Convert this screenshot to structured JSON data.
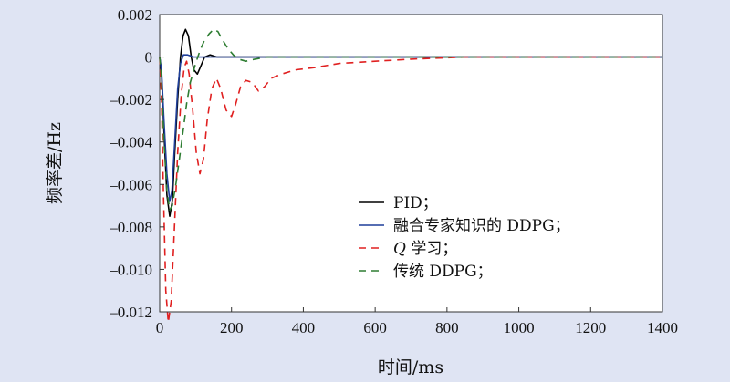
{
  "chart_data": {
    "type": "line",
    "xlabel": "时间/ms",
    "ylabel": "频率差/Hz",
    "xlim": [
      0,
      1400
    ],
    "ylim": [
      -0.012,
      0.002
    ],
    "x_ticks": [
      0,
      200,
      400,
      600,
      800,
      1000,
      1200,
      1400
    ],
    "y_ticks": [
      0.002,
      0,
      -0.002,
      -0.004,
      -0.006,
      -0.008,
      -0.01,
      -0.012
    ],
    "x_tick_labels": [
      "0",
      "200",
      "400",
      "600",
      "800",
      "1000",
      "1200",
      "1400"
    ],
    "y_tick_labels": [
      "0.002",
      "0",
      "–0.002",
      "–0.004",
      "–0.006",
      "–0.008",
      "–0.010",
      "–0.012"
    ],
    "grid": false,
    "legend_position": "bottom-center",
    "series": [
      {
        "name": "PID；",
        "color": "#000000",
        "dash": "solid",
        "points": [
          [
            0,
            0
          ],
          [
            5,
            -0.0008
          ],
          [
            12,
            -0.0035
          ],
          [
            20,
            -0.0065
          ],
          [
            28,
            -0.0075
          ],
          [
            35,
            -0.0068
          ],
          [
            42,
            -0.0045
          ],
          [
            50,
            -0.002
          ],
          [
            58,
            0.0
          ],
          [
            65,
            0.001
          ],
          [
            72,
            0.0013
          ],
          [
            80,
            0.001
          ],
          [
            88,
            0.0
          ],
          [
            95,
            -0.0006
          ],
          [
            105,
            -0.0008
          ],
          [
            115,
            -0.0004
          ],
          [
            125,
            0.0
          ],
          [
            140,
            0.0001
          ],
          [
            160,
            0.0
          ],
          [
            200,
            0.0
          ],
          [
            400,
            0.0
          ],
          [
            800,
            0.0
          ],
          [
            1400,
            0.0
          ]
        ]
      },
      {
        "name": "融合专家知识的 DDPG；",
        "color": "#1f3f9a",
        "dash": "solid",
        "points": [
          [
            0,
            0
          ],
          [
            5,
            -0.0006
          ],
          [
            12,
            -0.003
          ],
          [
            20,
            -0.0055
          ],
          [
            28,
            -0.0068
          ],
          [
            34,
            -0.0063
          ],
          [
            42,
            -0.004
          ],
          [
            50,
            -0.0015
          ],
          [
            58,
            -0.0003
          ],
          [
            66,
            0.0001
          ],
          [
            78,
            0.0001
          ],
          [
            95,
            0.0
          ],
          [
            150,
            0.0
          ],
          [
            400,
            0.0
          ],
          [
            800,
            0.0
          ],
          [
            1400,
            0.0
          ]
        ]
      },
      {
        "name": "Q 学习；",
        "color": "#e02020",
        "dash": "8,6",
        "points": [
          [
            0,
            0
          ],
          [
            5,
            -0.002
          ],
          [
            10,
            -0.006
          ],
          [
            17,
            -0.011
          ],
          [
            24,
            -0.0125
          ],
          [
            32,
            -0.0115
          ],
          [
            40,
            -0.0085
          ],
          [
            50,
            -0.0045
          ],
          [
            60,
            -0.0018
          ],
          [
            68,
            -0.0005
          ],
          [
            75,
            -0.0002
          ],
          [
            82,
            -0.0008
          ],
          [
            92,
            -0.0025
          ],
          [
            102,
            -0.0045
          ],
          [
            112,
            -0.0055
          ],
          [
            122,
            -0.0048
          ],
          [
            132,
            -0.003
          ],
          [
            145,
            -0.0015
          ],
          [
            158,
            -0.001
          ],
          [
            170,
            -0.0015
          ],
          [
            185,
            -0.0025
          ],
          [
            200,
            -0.0028
          ],
          [
            212,
            -0.0022
          ],
          [
            225,
            -0.0014
          ],
          [
            240,
            -0.0011
          ],
          [
            258,
            -0.0012
          ],
          [
            275,
            -0.0016
          ],
          [
            292,
            -0.0014
          ],
          [
            310,
            -0.001
          ],
          [
            340,
            -0.0008
          ],
          [
            380,
            -0.0006
          ],
          [
            430,
            -0.0005
          ],
          [
            500,
            -0.0003
          ],
          [
            600,
            -0.0002
          ],
          [
            700,
            -0.0001
          ],
          [
            850,
            0.0
          ],
          [
            1000,
            0.0
          ],
          [
            1400,
            0.0
          ]
        ]
      },
      {
        "name": "传统 DDPG；",
        "color": "#2e7d32",
        "dash": "8,6",
        "points": [
          [
            0,
            0
          ],
          [
            5,
            -0.001
          ],
          [
            12,
            -0.004
          ],
          [
            20,
            -0.0063
          ],
          [
            28,
            -0.0072
          ],
          [
            35,
            -0.007
          ],
          [
            45,
            -0.006
          ],
          [
            55,
            -0.0048
          ],
          [
            65,
            -0.0035
          ],
          [
            75,
            -0.0022
          ],
          [
            85,
            -0.0012
          ],
          [
            100,
            -0.0003
          ],
          [
            112,
            0.0003
          ],
          [
            125,
            0.0008
          ],
          [
            138,
            0.0011
          ],
          [
            150,
            0.0013
          ],
          [
            162,
            0.0012
          ],
          [
            175,
            0.0008
          ],
          [
            190,
            0.0004
          ],
          [
            205,
            0.0001
          ],
          [
            220,
            -0.0001
          ],
          [
            240,
            -0.0002
          ],
          [
            265,
            -0.0001
          ],
          [
            300,
            0.0
          ],
          [
            400,
            0.0
          ],
          [
            800,
            0.0
          ],
          [
            1400,
            0.0
          ]
        ]
      }
    ]
  }
}
